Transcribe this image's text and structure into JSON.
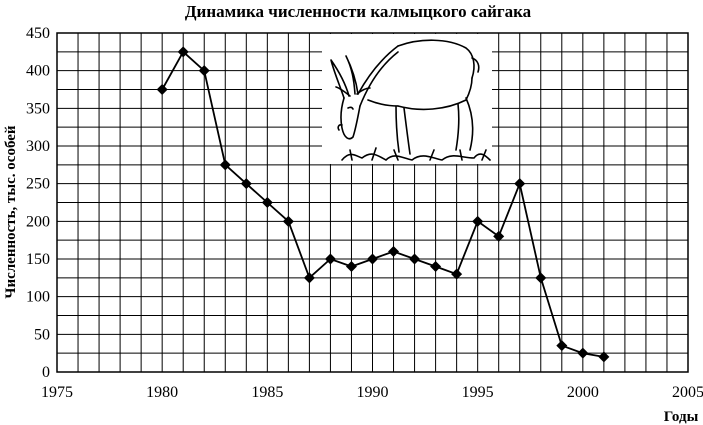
{
  "chart_data": {
    "type": "line",
    "title": "Динамика численности калмыцкого сайгака",
    "xlabel": "Годы",
    "ylabel": "Численность, тыс. особей",
    "xlim": [
      1975,
      2005
    ],
    "ylim": [
      0,
      450
    ],
    "x_ticks": [
      1975,
      1980,
      1985,
      1990,
      1995,
      2000,
      2005
    ],
    "y_ticks": [
      0,
      50,
      100,
      150,
      200,
      250,
      300,
      350,
      400,
      450
    ],
    "grid": true,
    "marker": "diamond",
    "illustration": "saiga-antelope-drawing",
    "series": [
      {
        "x": [
          1980,
          1981,
          1982,
          1983,
          1984,
          1985,
          1986,
          1987,
          1988,
          1989,
          1990,
          1991,
          1992,
          1993,
          1994,
          1995,
          1996,
          1997,
          1998,
          1999,
          2000,
          2001
        ],
        "y": [
          375,
          425,
          400,
          275,
          250,
          225,
          200,
          125,
          150,
          140,
          150,
          160,
          150,
          140,
          130,
          200,
          180,
          250,
          125,
          35,
          25,
          20
        ]
      }
    ]
  }
}
